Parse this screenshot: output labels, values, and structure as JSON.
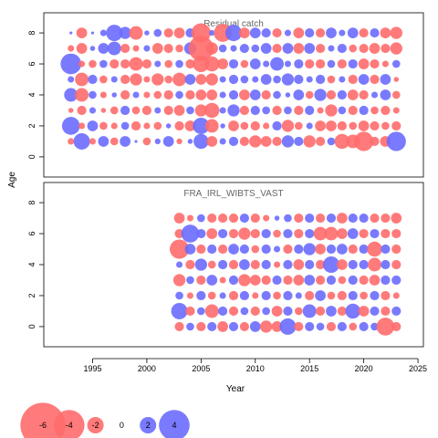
{
  "chart_data": {
    "type": "scatter",
    "style": "bubble",
    "xlabel": "Year",
    "ylabel": "Age",
    "x_ticks": [
      1995,
      2000,
      2005,
      2010,
      2015,
      2020,
      2025
    ],
    "y_ticks": [
      0,
      2,
      4,
      6,
      8
    ],
    "xlim": [
      1990.5,
      2025.5
    ],
    "ylim": [
      -1.3,
      9.3
    ],
    "colors": {
      "negative": "#ff6b6b",
      "positive": "#6b6bff"
    },
    "size_legend": {
      "values": [
        -6,
        -4,
        -2,
        0,
        2,
        4
      ],
      "labels": [
        "-6",
        "-4",
        "-2",
        "0",
        "2",
        "4"
      ]
    },
    "panels": [
      {
        "title": "Residual catch",
        "years": [
          1993,
          1994,
          1995,
          1996,
          1997,
          1998,
          1999,
          2000,
          2001,
          2002,
          2003,
          2004,
          2005,
          2006,
          2007,
          2008,
          2009,
          2010,
          2011,
          2012,
          2013,
          2014,
          2015,
          2016,
          2017,
          2018,
          2019,
          2020,
          2021,
          2022,
          2023
        ],
        "ages": [
          1,
          2,
          3,
          4,
          5,
          6,
          7,
          8
        ],
        "residuals": [
          [
            -0.6,
            2.0,
            -0.6,
            1.2,
            -0.8,
            1.2,
            0.1,
            -0.8,
            0.5,
            1.2,
            -0.5,
            0.4,
            1.8,
            -1.2,
            0.6,
            1.0,
            -1.0,
            -1.4,
            -1.2,
            -1.0,
            1.4,
            1.0,
            -1.4,
            -1.0,
            0.8,
            -1.8,
            -1.6,
            -2.4,
            -1.0,
            -1.2,
            2.4
          ],
          [
            2.2,
            -0.6,
            1.2,
            -0.8,
            -0.6,
            0.8,
            -1.0,
            -0.6,
            -0.8,
            0.4,
            -1.0,
            -1.2,
            2.0,
            -1.6,
            0.4,
            -1.2,
            -0.8,
            -1.0,
            -0.6,
            1.0,
            -1.4,
            -0.8,
            0.6,
            -1.2,
            -1.2,
            -1.0,
            -0.8,
            -1.2,
            -1.0,
            -0.8,
            -1.0
          ],
          [
            -0.4,
            -1.0,
            0.6,
            -0.4,
            -0.8,
            1.0,
            -0.8,
            -1.0,
            0.6,
            -1.0,
            -1.2,
            0.8,
            -1.4,
            -1.8,
            0.6,
            1.4,
            -1.0,
            1.0,
            0.8,
            -1.0,
            0.8,
            -1.0,
            1.0,
            -0.6,
            -1.4,
            0.8,
            -1.0,
            1.0,
            -0.8,
            -1.0,
            -0.6
          ],
          [
            1.6,
            -1.6,
            0.8,
            -0.6,
            0.4,
            -1.0,
            0.6,
            -0.6,
            -0.8,
            -1.0,
            0.8,
            -1.0,
            -1.2,
            -1.2,
            0.6,
            1.0,
            -1.2,
            1.2,
            -1.0,
            0.8,
            0.4,
            1.2,
            -0.8,
            1.4,
            -1.0,
            1.0,
            -1.2,
            -1.0,
            0.6,
            1.2,
            -0.8
          ],
          [
            0.6,
            -1.6,
            1.0,
            -0.8,
            0.6,
            -1.0,
            -1.4,
            -0.6,
            -1.4,
            -0.8,
            -1.6,
            1.2,
            -1.2,
            -1.4,
            0.6,
            1.0,
            0.8,
            0.6,
            1.2,
            0.8,
            1.4,
            1.0,
            0.6,
            1.0,
            -0.8,
            0.6,
            -1.0,
            1.2,
            -1.0,
            1.2,
            -0.4
          ],
          [
            2.6,
            -0.6,
            -0.8,
            0.8,
            -1.0,
            -1.0,
            -1.6,
            -1.0,
            0.6,
            -0.8,
            0.8,
            -1.0,
            -2.0,
            -1.8,
            -1.2,
            1.0,
            -0.8,
            1.2,
            0.6,
            1.6,
            0.6,
            1.0,
            -1.0,
            -1.0,
            0.8,
            -1.0,
            1.0,
            -1.2,
            -1.0,
            -0.6,
            0.8
          ],
          [
            -0.6,
            -1.2,
            0.4,
            1.2,
            1.6,
            -1.0,
            -0.6,
            0.6,
            -1.2,
            -1.0,
            -0.8,
            1.4,
            -3.2,
            -1.4,
            0.8,
            0.6,
            1.0,
            0.8,
            1.2,
            -1.0,
            1.2,
            -1.2,
            1.2,
            -1.0,
            0.6,
            1.0,
            -0.8,
            -1.0,
            -1.2,
            -1.0,
            -1.4
          ],
          [
            0.1,
            -1.2,
            0.1,
            0.6,
            2.0,
            1.4,
            -1.6,
            0.4,
            0.8,
            -1.0,
            -1.2,
            1.0,
            -2.4,
            0.5,
            -2.2,
            2.0,
            -1.2,
            1.2,
            1.0,
            -1.0,
            0.6,
            -1.2,
            1.0,
            -1.0,
            1.2,
            0.6,
            1.2,
            -1.0,
            1.0,
            -1.2,
            -1.4
          ]
        ]
      },
      {
        "title": "FRA_IRL_WIBTS_VAST",
        "years": [
          2003,
          2004,
          2005,
          2006,
          2007,
          2008,
          2009,
          2010,
          2011,
          2012,
          2013,
          2014,
          2015,
          2016,
          2017,
          2018,
          2019,
          2020,
          2021,
          2022,
          2023
        ],
        "ages": [
          0,
          1,
          2,
          3,
          4,
          5,
          6,
          7
        ],
        "residuals": [
          [
            -1.0,
            0.8,
            -1.0,
            1.0,
            -1.2,
            1.0,
            -1.0,
            1.2,
            -1.4,
            -1.2,
            2.0,
            -1.0,
            1.0,
            0.8,
            -1.0,
            1.0,
            -0.8,
            1.0,
            0.8,
            -2.2,
            -1.0
          ],
          [
            2.0,
            -1.0,
            0.8,
            -1.6,
            1.0,
            -1.0,
            0.8,
            -1.0,
            0.8,
            -1.2,
            1.0,
            -0.8,
            1.6,
            -1.0,
            1.2,
            -1.0,
            1.8,
            -1.2,
            1.0,
            -1.0,
            1.0
          ],
          [
            0.8,
            -0.6,
            1.0,
            -0.8,
            0.6,
            -1.0,
            1.0,
            -0.6,
            1.0,
            -0.8,
            1.0,
            0.6,
            -1.0,
            1.2,
            -0.8,
            -1.0,
            1.0,
            -0.8,
            1.0,
            -1.0,
            -0.6
          ],
          [
            -1.4,
            0.8,
            -1.0,
            1.2,
            -0.6,
            1.0,
            -1.4,
            -1.2,
            -1.0,
            1.0,
            -1.0,
            -1.2,
            1.2,
            -1.0,
            1.0,
            -0.8,
            1.0,
            -1.0,
            -1.2,
            1.0,
            1.0
          ],
          [
            0.6,
            -1.0,
            1.4,
            -0.8,
            1.0,
            -1.0,
            1.2,
            -1.0,
            1.0,
            -0.6,
            1.0,
            -1.2,
            1.0,
            -1.0,
            2.0,
            -1.2,
            1.0,
            1.0,
            -1.6,
            1.0,
            -1.0
          ],
          [
            -2.4,
            1.2,
            -1.0,
            1.0,
            -1.0,
            1.2,
            1.0,
            -0.8,
            1.0,
            0.6,
            -1.0,
            1.0,
            1.4,
            -1.2,
            1.0,
            1.2,
            -1.0,
            1.0,
            -1.8,
            1.0,
            -1.0
          ],
          [
            -1.0,
            2.2,
            1.0,
            -1.2,
            1.0,
            -1.0,
            -1.4,
            -1.0,
            1.0,
            -0.8,
            1.0,
            -1.0,
            1.0,
            -1.6,
            -1.6,
            -1.2,
            1.2,
            -1.0,
            1.0,
            -1.0,
            -1.0
          ],
          [
            -1.2,
            -0.6,
            0.8,
            -1.0,
            -1.0,
            -1.0,
            1.0,
            -1.0,
            -0.6,
            0.4,
            0.8,
            -1.0,
            1.0,
            -1.0,
            1.0,
            -1.2,
            1.0,
            1.0,
            -1.0,
            -1.0,
            -1.2
          ]
        ]
      }
    ]
  }
}
